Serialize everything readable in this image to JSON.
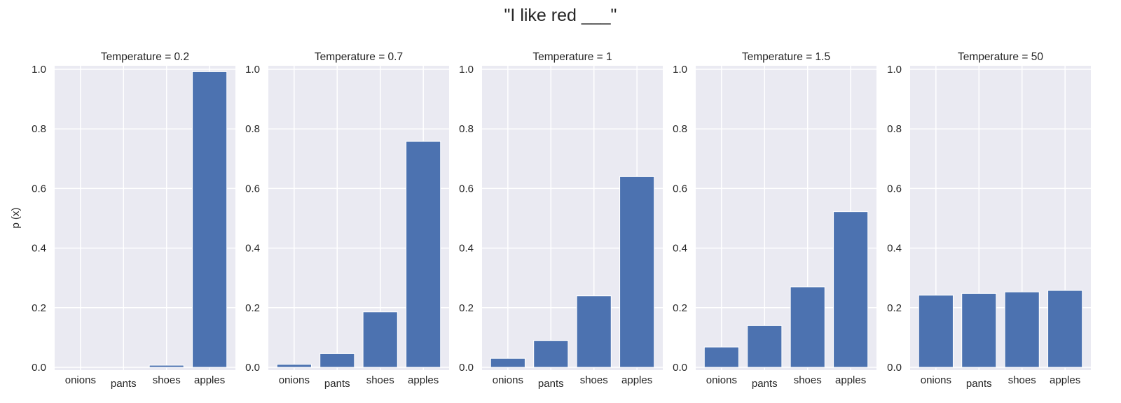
{
  "figure": {
    "suptitle": "\"I like red ___\""
  },
  "colors": {
    "bar": "#4c72b0",
    "axes_bg": "#eaeaf2",
    "grid": "#ffffff"
  },
  "chart_data": [
    {
      "type": "bar",
      "title": "Temperature = 0.2",
      "ylabel": "p (x)",
      "categories": [
        "onions",
        "pants",
        "shoes",
        "apples"
      ],
      "values": [
        0.0,
        0.0,
        0.007,
        0.992
      ],
      "ylim": [
        0,
        1.0
      ],
      "yticks": [
        "0.0",
        "0.2",
        "0.4",
        "0.6",
        "0.8",
        "1.0"
      ],
      "grid": true
    },
    {
      "type": "bar",
      "title": "Temperature = 0.7",
      "ylabel": "",
      "categories": [
        "onions",
        "pants",
        "shoes",
        "apples"
      ],
      "values": [
        0.01,
        0.046,
        0.186,
        0.758
      ],
      "ylim": [
        0,
        1.0
      ],
      "yticks": [
        "0.0",
        "0.2",
        "0.4",
        "0.6",
        "0.8",
        "1.0"
      ],
      "grid": true
    },
    {
      "type": "bar",
      "title": "Temperature = 1",
      "ylabel": "",
      "categories": [
        "onions",
        "pants",
        "shoes",
        "apples"
      ],
      "values": [
        0.03,
        0.09,
        0.24,
        0.64
      ],
      "ylim": [
        0,
        1.0
      ],
      "yticks": [
        "0.0",
        "0.2",
        "0.4",
        "0.6",
        "0.8",
        "1.0"
      ],
      "grid": true
    },
    {
      "type": "bar",
      "title": "Temperature = 1.5",
      "ylabel": "",
      "categories": [
        "onions",
        "pants",
        "shoes",
        "apples"
      ],
      "values": [
        0.068,
        0.14,
        0.27,
        0.522
      ],
      "ylim": [
        0,
        1.0
      ],
      "yticks": [
        "0.0",
        "0.2",
        "0.4",
        "0.6",
        "0.8",
        "1.0"
      ],
      "grid": true
    },
    {
      "type": "bar",
      "title": "Temperature = 50",
      "ylabel": "",
      "categories": [
        "onions",
        "pants",
        "shoes",
        "apples"
      ],
      "values": [
        0.242,
        0.248,
        0.253,
        0.258
      ],
      "ylim": [
        0,
        1.0
      ],
      "yticks": [
        "0.0",
        "0.2",
        "0.4",
        "0.6",
        "0.8",
        "1.0"
      ],
      "grid": true
    }
  ]
}
